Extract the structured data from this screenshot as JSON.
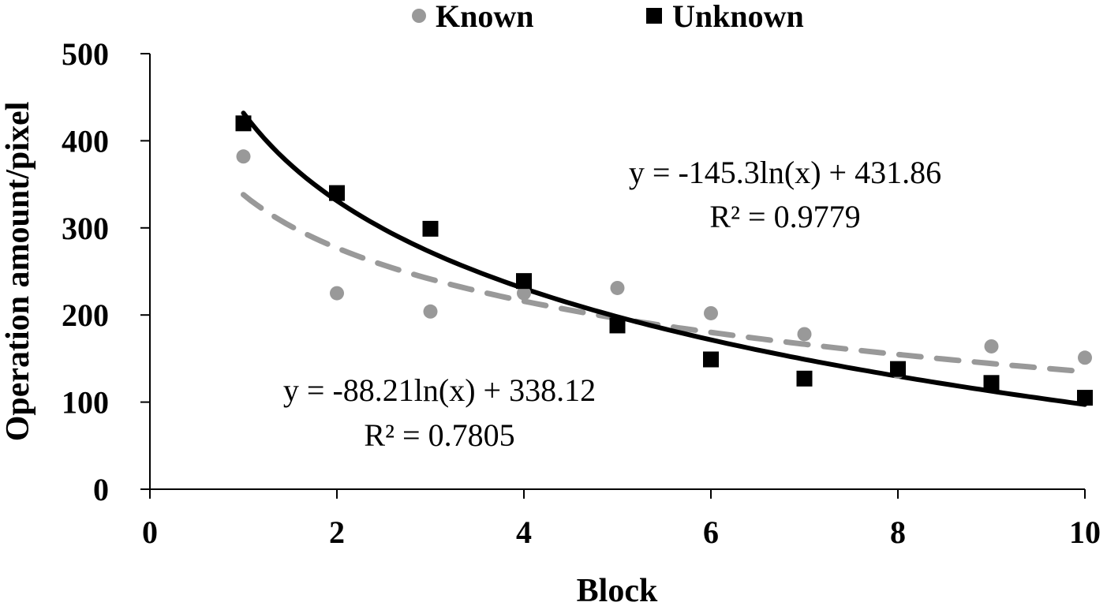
{
  "chart_data": {
    "type": "scatter",
    "xlabel": "Block",
    "ylabel": "Operation amount/pixel",
    "xlim": [
      0,
      10
    ],
    "ylim": [
      0,
      500
    ],
    "x_ticks": [
      "0",
      "2",
      "4",
      "6",
      "8",
      "10"
    ],
    "y_ticks": [
      "0",
      "100",
      "200",
      "300",
      "400",
      "500"
    ],
    "grid": false,
    "legend_position": "top-center",
    "series": [
      {
        "name": "Known",
        "marker": "circle",
        "color": "#999999",
        "x": [
          1,
          2,
          3,
          4,
          5,
          6,
          7,
          8,
          9,
          10
        ],
        "y": [
          382,
          225,
          204,
          225,
          231,
          202,
          178,
          135,
          164,
          151
        ],
        "trend": {
          "type": "log",
          "a": -88.21,
          "b": 338.12,
          "style": "dashed",
          "color": "#999999"
        }
      },
      {
        "name": "Unknown",
        "marker": "square",
        "color": "#000000",
        "x": [
          1,
          2,
          3,
          4,
          5,
          6,
          7,
          8,
          9,
          10
        ],
        "y": [
          420,
          340,
          299,
          239,
          188,
          149,
          127,
          138,
          122,
          105
        ],
        "trend": {
          "type": "log",
          "a": -145.3,
          "b": 431.86,
          "style": "solid",
          "color": "#000000"
        }
      }
    ],
    "annotations": [
      {
        "eq": "y = -145.3ln(x)  + 431.86",
        "r2": "R² = 0.9779"
      },
      {
        "eq": "y = -88.21ln(x)  + 338.12",
        "r2": "R² = 0.7805"
      }
    ]
  }
}
